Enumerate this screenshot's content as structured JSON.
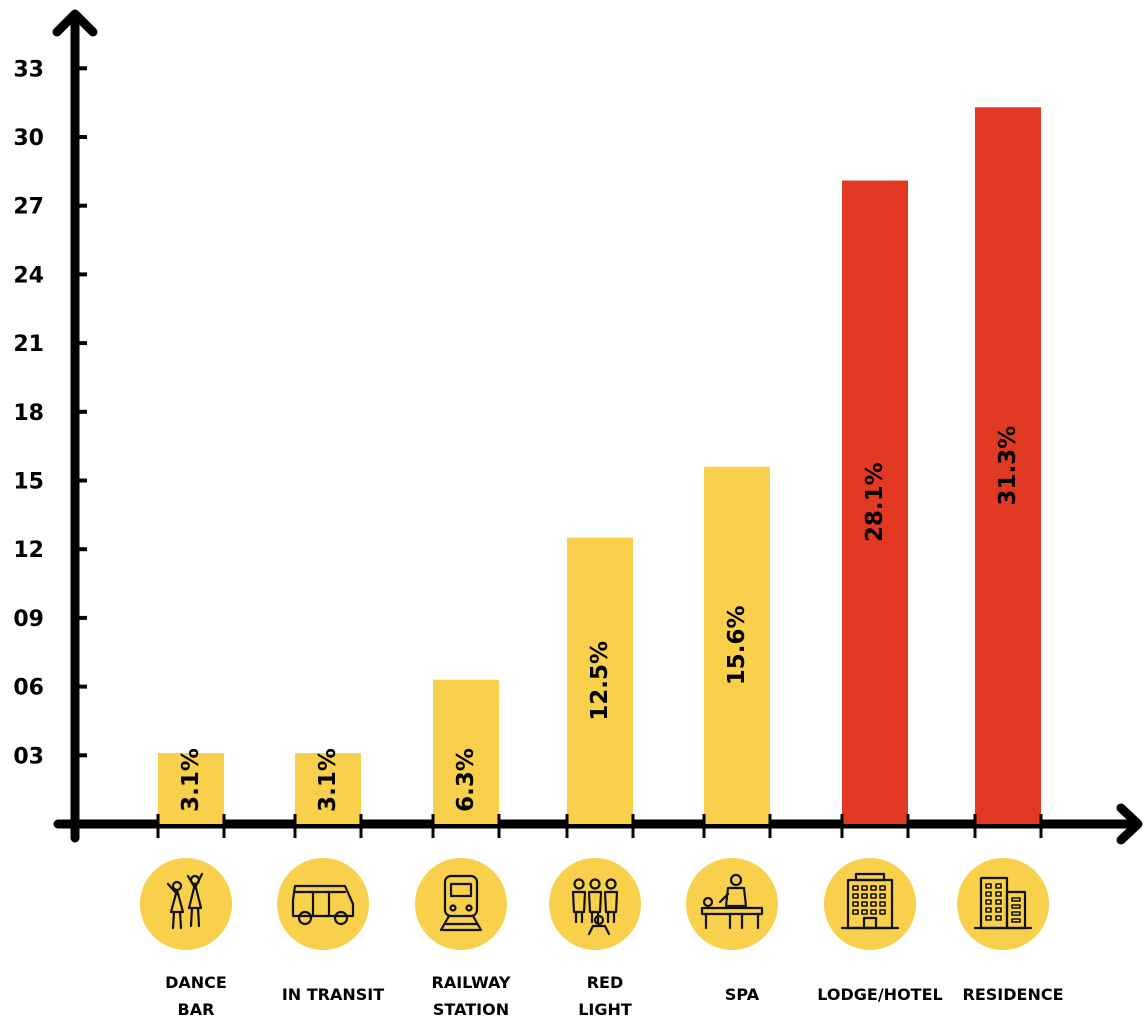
{
  "chart_data": {
    "type": "bar",
    "categories": [
      "DANCE BAR",
      "IN TRANSIT",
      "RAILWAY STATION",
      "RED LIGHT",
      "SPA",
      "LODGE/HOTEL",
      "RESIDENCE"
    ],
    "category_lines": [
      [
        "DANCE",
        "BAR"
      ],
      [
        "IN TRANSIT"
      ],
      [
        "RAILWAY",
        "STATION"
      ],
      [
        "RED",
        "LIGHT"
      ],
      [
        "SPA"
      ],
      [
        "LODGE/HOTEL"
      ],
      [
        "RESIDENCE"
      ]
    ],
    "values": [
      3.1,
      3.1,
      6.3,
      12.5,
      15.6,
      28.1,
      31.3
    ],
    "value_labels": [
      "3.1%",
      "3.1%",
      "6.3%",
      "12.5%",
      "15.6%",
      "28.1%",
      "31.3%"
    ],
    "bar_colors": [
      "#f8d04c",
      "#f8d04c",
      "#f8d04c",
      "#f8d04c",
      "#f8d04c",
      "#e23a22",
      "#e23a22"
    ],
    "icons": [
      "dance-bar-icon",
      "auto-rickshaw-icon",
      "train-icon",
      "women-group-icon",
      "massage-spa-icon",
      "hotel-building-icon",
      "residence-building-icon"
    ],
    "icon_circle_color": "#f8d04c",
    "y_ticks": [
      3,
      6,
      9,
      12,
      15,
      18,
      21,
      24,
      27,
      30,
      33
    ],
    "y_tick_labels": [
      "03",
      "06",
      "09",
      "12",
      "15",
      "18",
      "21",
      "24",
      "27",
      "30",
      "33"
    ],
    "ylim": [
      0,
      33
    ],
    "grid": false,
    "title": "",
    "xlabel": "",
    "ylabel": ""
  }
}
